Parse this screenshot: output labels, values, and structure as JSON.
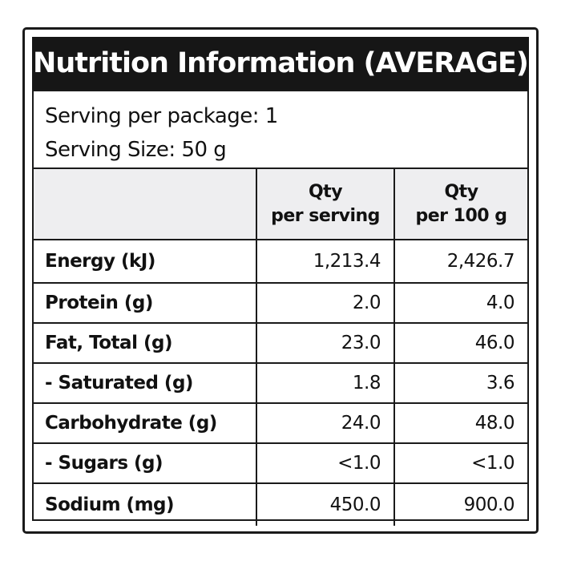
{
  "title": "Nutrition Information (AVERAGE)",
  "serving": {
    "per_package": "Serving per package: 1",
    "size": "Serving Size: 50 g"
  },
  "table": {
    "headers": [
      "",
      [
        "Qty",
        "per serving"
      ],
      [
        "Qty",
        "per 100 g"
      ]
    ],
    "rows": [
      {
        "nutrient": "Energy (kJ)",
        "per_serving": "1,213.4",
        "per_100g": "2,426.7"
      },
      {
        "nutrient": "Protein (g)",
        "per_serving": "2.0",
        "per_100g": "4.0"
      },
      {
        "nutrient": "Fat, Total (g)",
        "per_serving": "23.0",
        "per_100g": "46.0"
      },
      {
        "nutrient": "- Saturated (g)",
        "per_serving": "1.8",
        "per_100g": "3.6"
      },
      {
        "nutrient": "Carbohydrate (g)",
        "per_serving": "24.0",
        "per_100g": "48.0"
      },
      {
        "nutrient": "- Sugars (g)",
        "per_serving": "<1.0",
        "per_100g": "<1.0"
      },
      {
        "nutrient": "Sodium (mg)",
        "per_serving": "450.0",
        "per_100g": "900.0"
      }
    ]
  },
  "colors": {
    "title_background": "#161616",
    "title_text": "#ffffff",
    "header_background": "#eeeef0",
    "border": "#1a1a1a"
  }
}
